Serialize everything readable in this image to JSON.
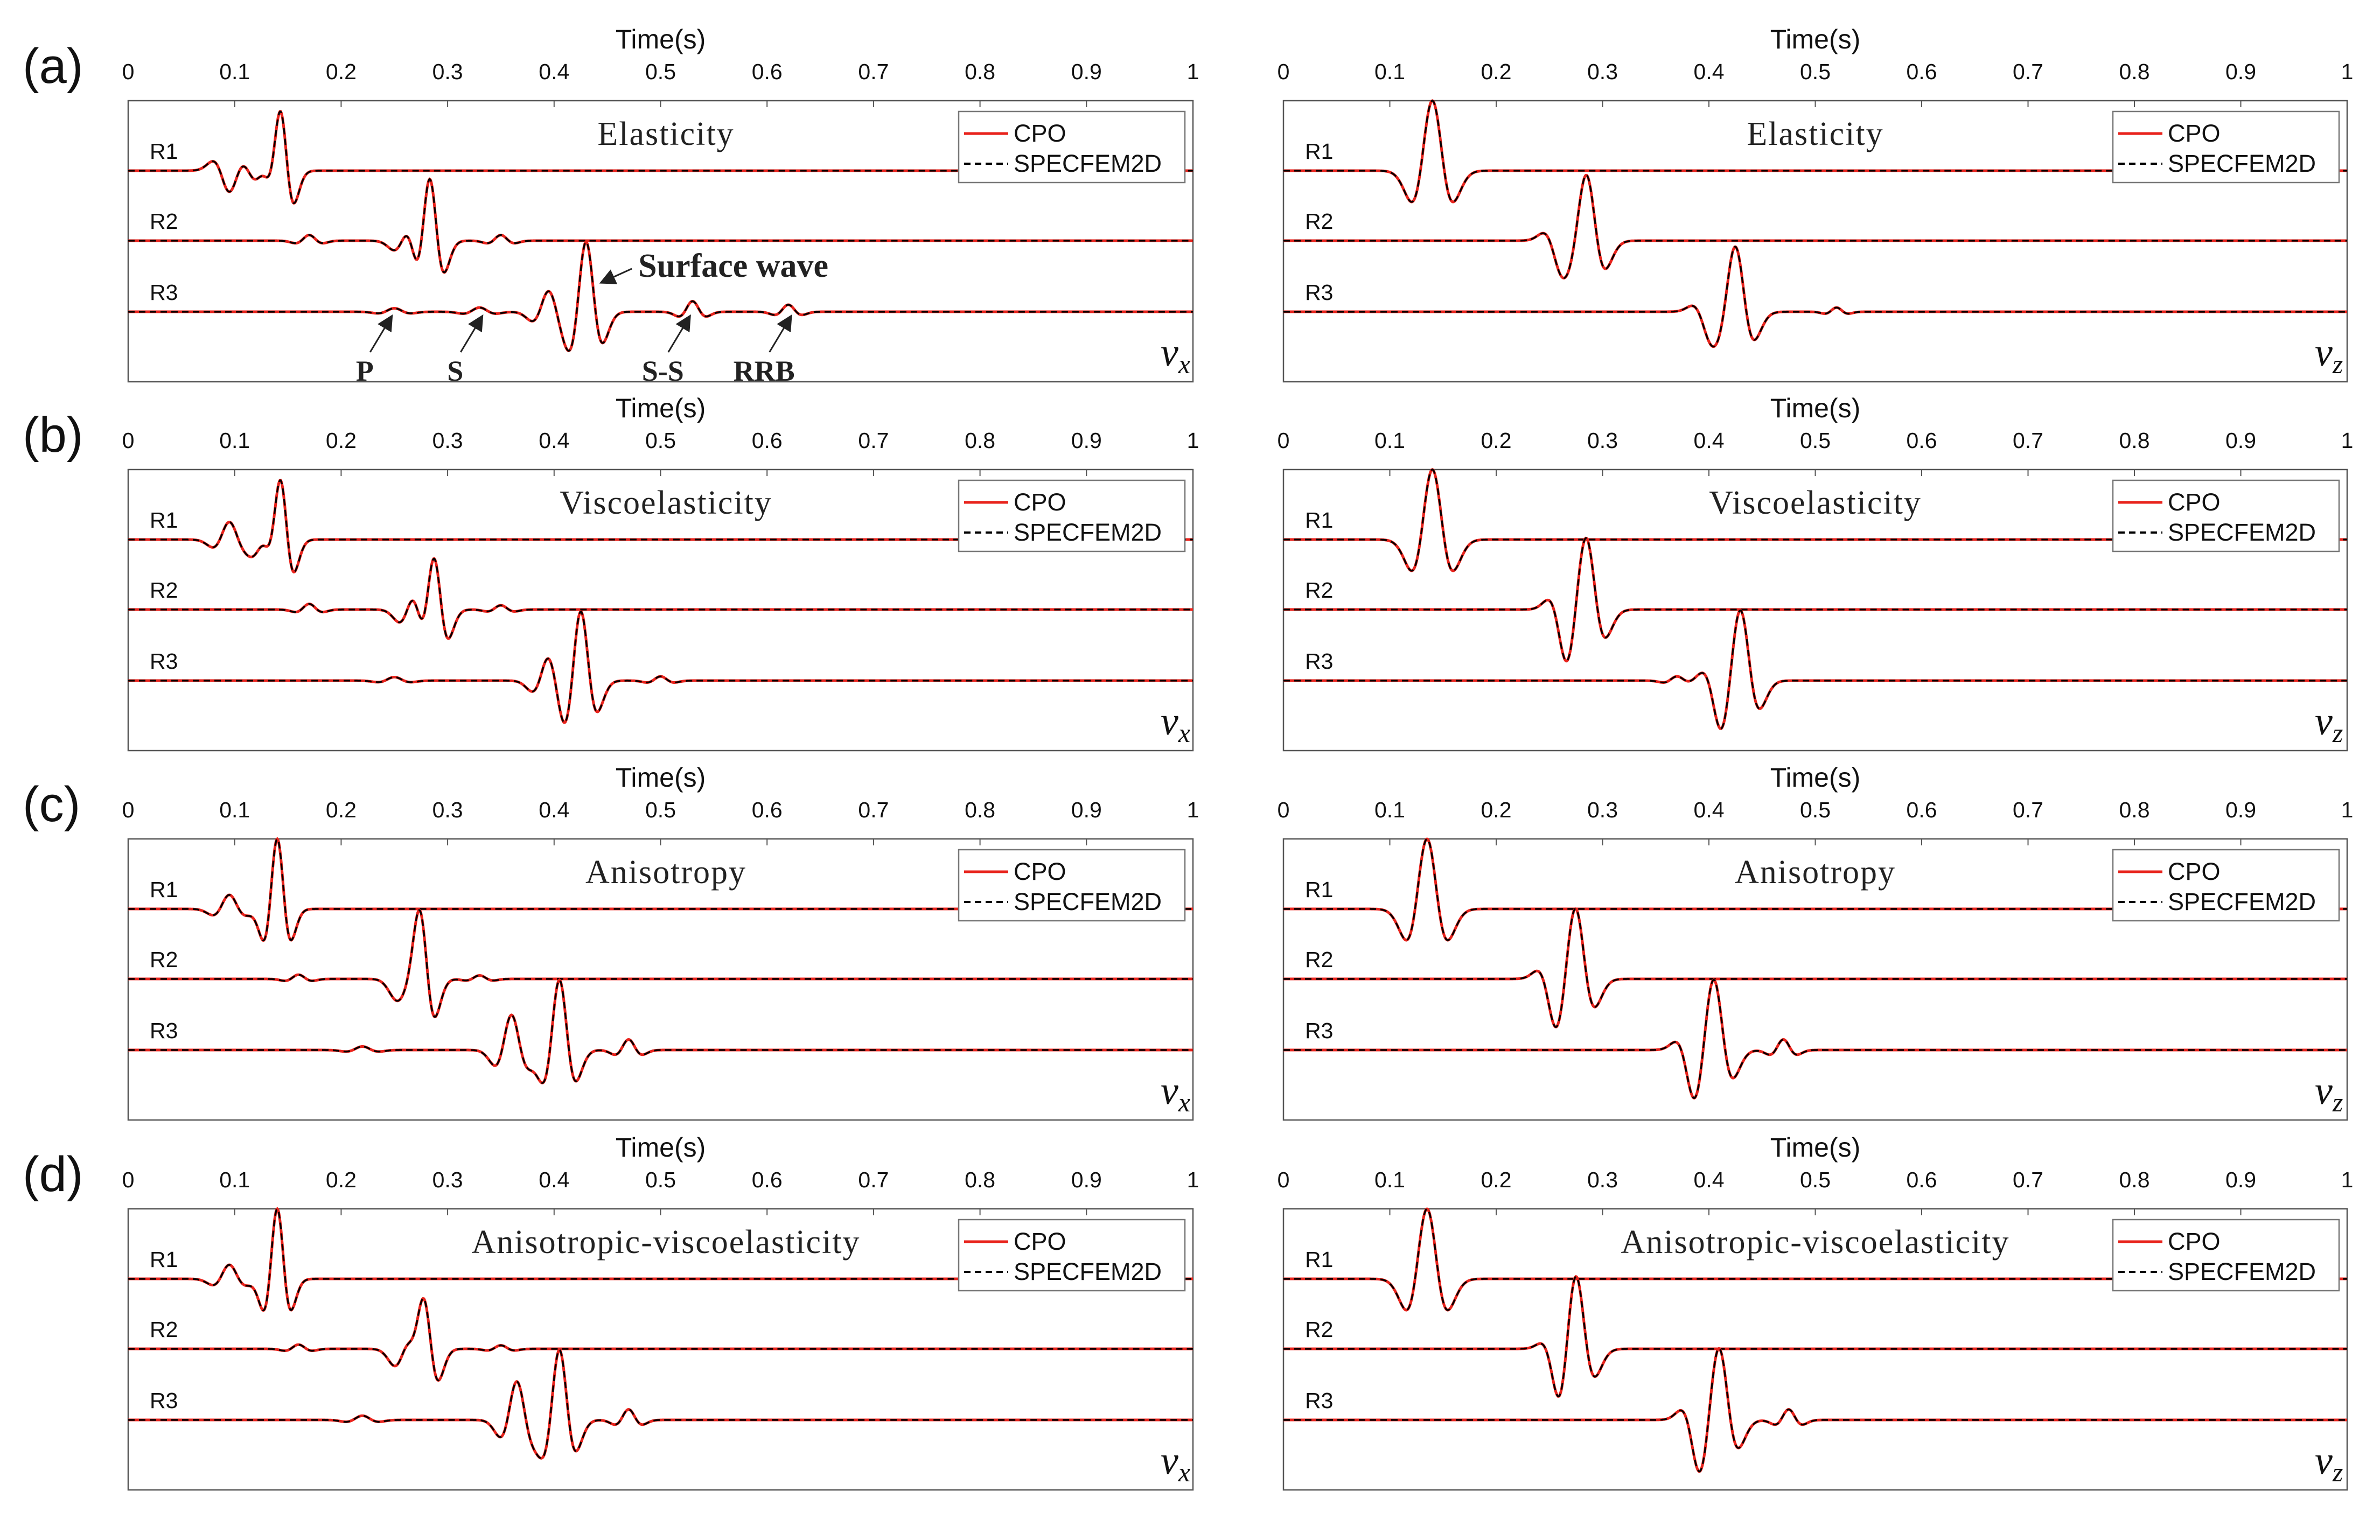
{
  "figure": {
    "panel_labels": [
      "(a)",
      "(b)",
      "(c)",
      "(d)"
    ],
    "titles": [
      "Elasticity",
      "Viscoelasticity",
      "Anisotropy",
      "Anisotropic-viscoelasticity"
    ],
    "component_labels": {
      "left": {
        "base": "v",
        "sub": "x"
      },
      "right": {
        "base": "v",
        "sub": "z"
      }
    },
    "receivers": [
      "R1",
      "R2",
      "R3"
    ],
    "legend": [
      {
        "label": "CPO",
        "color": "#e8231c",
        "style": "solid"
      },
      {
        "label": "SPECFEM2D",
        "color": "#000000",
        "style": "dashed"
      }
    ],
    "annotations": [
      {
        "label": "Surface wave",
        "t": 0.43,
        "receiver": "R3"
      },
      {
        "label": "P",
        "t": 0.25,
        "receiver": "R3"
      },
      {
        "label": "S",
        "t": 0.335,
        "receiver": "R3"
      },
      {
        "label": "S-S",
        "t": 0.53,
        "receiver": "R3"
      },
      {
        "label": "RRB",
        "t": 0.625,
        "receiver": "R3"
      }
    ]
  },
  "chart_data": [
    {
      "type": "line",
      "panel": "(a)",
      "component": "vx",
      "title": "Elasticity",
      "xlabel": "Time(s)",
      "xlim": [
        0,
        1
      ],
      "xticks": [
        "0",
        "0.1",
        "0.2",
        "0.3",
        "0.4",
        "0.5",
        "0.6",
        "0.7",
        "0.8",
        "0.9",
        "1"
      ],
      "series": [
        {
          "name": "R1",
          "arrivals": [
            {
              "t": 0.095,
              "amp": -0.3,
              "f": 25
            },
            {
              "t": 0.13,
              "amp": 0.35,
              "f": 28
            },
            {
              "t": 0.143,
              "amp": 1.0,
              "f": 30
            }
          ]
        },
        {
          "name": "R2",
          "arrivals": [
            {
              "t": 0.17,
              "amp": 0.08,
              "f": 30
            },
            {
              "t": 0.265,
              "amp": 0.3,
              "f": 25
            },
            {
              "t": 0.283,
              "amp": 1.0,
              "f": 28
            },
            {
              "t": 0.35,
              "amp": 0.08,
              "f": 30
            }
          ]
        },
        {
          "name": "R3",
          "arrivals": [
            {
              "t": 0.25,
              "amp": 0.05,
              "f": 25
            },
            {
              "t": 0.33,
              "amp": 0.06,
              "f": 25
            },
            {
              "t": 0.395,
              "amp": 0.3,
              "f": 25
            },
            {
              "t": 0.43,
              "amp": 1.0,
              "f": 25
            },
            {
              "t": 0.53,
              "amp": 0.15,
              "f": 30
            },
            {
              "t": 0.62,
              "amp": 0.1,
              "f": 30
            }
          ]
        }
      ]
    },
    {
      "type": "line",
      "panel": "(a)",
      "component": "vz",
      "title": "Elasticity",
      "xlabel": "Time(s)",
      "xlim": [
        0,
        1
      ],
      "xticks": [
        "0",
        "0.1",
        "0.2",
        "0.3",
        "0.4",
        "0.5",
        "0.6",
        "0.7",
        "0.8",
        "0.9",
        "1"
      ],
      "series": [
        {
          "name": "R1",
          "arrivals": [
            {
              "t": 0.14,
              "amp": 1.0,
              "f": 20
            }
          ]
        },
        {
          "name": "R2",
          "arrivals": [
            {
              "t": 0.26,
              "amp": -0.25,
              "f": 25
            },
            {
              "t": 0.285,
              "amp": 0.9,
              "f": 22
            }
          ]
        },
        {
          "name": "R3",
          "arrivals": [
            {
              "t": 0.4,
              "amp": -0.2,
              "f": 25
            },
            {
              "t": 0.425,
              "amp": 0.9,
              "f": 22
            },
            {
              "t": 0.52,
              "amp": 0.06,
              "f": 35
            }
          ]
        }
      ]
    },
    {
      "type": "line",
      "panel": "(b)",
      "component": "vx",
      "title": "Viscoelasticity",
      "xlabel": "Time(s)",
      "xlim": [
        0,
        1
      ],
      "xticks": [
        "0",
        "0.1",
        "0.2",
        "0.3",
        "0.4",
        "0.5",
        "0.6",
        "0.7",
        "0.8",
        "0.9",
        "1"
      ],
      "series": [
        {
          "name": "R1",
          "arrivals": [
            {
              "t": 0.095,
              "amp": 0.25,
              "f": 25
            },
            {
              "t": 0.13,
              "amp": 0.35,
              "f": 28
            },
            {
              "t": 0.143,
              "amp": 1.0,
              "f": 30
            }
          ]
        },
        {
          "name": "R2",
          "arrivals": [
            {
              "t": 0.17,
              "amp": 0.08,
              "f": 30
            },
            {
              "t": 0.27,
              "amp": 0.4,
              "f": 25
            },
            {
              "t": 0.287,
              "amp": 0.9,
              "f": 28
            },
            {
              "t": 0.35,
              "amp": 0.06,
              "f": 30
            }
          ]
        },
        {
          "name": "R3",
          "arrivals": [
            {
              "t": 0.25,
              "amp": 0.05,
              "f": 25
            },
            {
              "t": 0.395,
              "amp": 0.35,
              "f": 25
            },
            {
              "t": 0.425,
              "amp": 1.0,
              "f": 25
            },
            {
              "t": 0.5,
              "amp": 0.06,
              "f": 30
            }
          ]
        }
      ]
    },
    {
      "type": "line",
      "panel": "(b)",
      "component": "vz",
      "title": "Viscoelasticity",
      "xlabel": "Time(s)",
      "xlim": [
        0,
        1
      ],
      "xticks": [
        "0",
        "0.1",
        "0.2",
        "0.3",
        "0.4",
        "0.5",
        "0.6",
        "0.7",
        "0.8",
        "0.9",
        "1"
      ],
      "series": [
        {
          "name": "R1",
          "arrivals": [
            {
              "t": 0.14,
              "amp": 1.0,
              "f": 20
            }
          ]
        },
        {
          "name": "R2",
          "arrivals": [
            {
              "t": 0.265,
              "amp": -0.35,
              "f": 25
            },
            {
              "t": 0.285,
              "amp": 0.9,
              "f": 22
            }
          ]
        },
        {
          "name": "R3",
          "arrivals": [
            {
              "t": 0.37,
              "amp": 0.06,
              "f": 30
            },
            {
              "t": 0.41,
              "amp": -0.3,
              "f": 25
            },
            {
              "t": 0.43,
              "amp": 0.9,
              "f": 22
            }
          ]
        }
      ]
    },
    {
      "type": "line",
      "panel": "(c)",
      "component": "vx",
      "title": "Anisotropy",
      "xlabel": "Time(s)",
      "xlim": [
        0,
        1
      ],
      "xticks": [
        "0",
        "0.1",
        "0.2",
        "0.3",
        "0.4",
        "0.5",
        "0.6",
        "0.7",
        "0.8",
        "0.9",
        "1"
      ],
      "series": [
        {
          "name": "R1",
          "arrivals": [
            {
              "t": 0.095,
              "amp": 0.2,
              "f": 25
            },
            {
              "t": 0.14,
              "amp": 1.0,
              "f": 30
            }
          ]
        },
        {
          "name": "R2",
          "arrivals": [
            {
              "t": 0.16,
              "amp": 0.06,
              "f": 30
            },
            {
              "t": 0.265,
              "amp": 0.5,
              "f": 25
            },
            {
              "t": 0.275,
              "amp": 1.0,
              "f": 28
            },
            {
              "t": 0.33,
              "amp": 0.05,
              "f": 30
            }
          ]
        },
        {
          "name": "R3",
          "arrivals": [
            {
              "t": 0.22,
              "amp": 0.05,
              "f": 25
            },
            {
              "t": 0.36,
              "amp": 0.5,
              "f": 25
            },
            {
              "t": 0.405,
              "amp": 1.0,
              "f": 25
            },
            {
              "t": 0.47,
              "amp": 0.15,
              "f": 30
            }
          ]
        }
      ]
    },
    {
      "type": "line",
      "panel": "(c)",
      "component": "vz",
      "title": "Anisotropy",
      "xlabel": "Time(s)",
      "xlim": [
        0,
        1
      ],
      "xticks": [
        "0",
        "0.1",
        "0.2",
        "0.3",
        "0.4",
        "0.5",
        "0.6",
        "0.7",
        "0.8",
        "0.9",
        "1"
      ],
      "series": [
        {
          "name": "R1",
          "arrivals": [
            {
              "t": 0.135,
              "amp": 1.0,
              "f": 20
            }
          ]
        },
        {
          "name": "R2",
          "arrivals": [
            {
              "t": 0.255,
              "amp": -0.3,
              "f": 25
            },
            {
              "t": 0.275,
              "amp": 0.9,
              "f": 22
            }
          ]
        },
        {
          "name": "R3",
          "arrivals": [
            {
              "t": 0.385,
              "amp": -0.3,
              "f": 25
            },
            {
              "t": 0.405,
              "amp": 0.9,
              "f": 22
            },
            {
              "t": 0.47,
              "amp": 0.15,
              "f": 30
            }
          ]
        }
      ]
    },
    {
      "type": "line",
      "panel": "(d)",
      "component": "vx",
      "title": "Anisotropic-viscoelasticity",
      "xlabel": "Time(s)",
      "xlim": [
        0,
        1
      ],
      "xticks": [
        "0",
        "0.1",
        "0.2",
        "0.3",
        "0.4",
        "0.5",
        "0.6",
        "0.7",
        "0.8",
        "0.9",
        "1"
      ],
      "series": [
        {
          "name": "R1",
          "arrivals": [
            {
              "t": 0.095,
              "amp": 0.2,
              "f": 25
            },
            {
              "t": 0.14,
              "amp": 1.0,
              "f": 30
            }
          ]
        },
        {
          "name": "R2",
          "arrivals": [
            {
              "t": 0.16,
              "amp": 0.06,
              "f": 30
            },
            {
              "t": 0.265,
              "amp": 0.5,
              "f": 25
            },
            {
              "t": 0.278,
              "amp": 0.9,
              "f": 28
            },
            {
              "t": 0.35,
              "amp": 0.05,
              "f": 30
            }
          ]
        },
        {
          "name": "R3",
          "arrivals": [
            {
              "t": 0.22,
              "amp": 0.06,
              "f": 25
            },
            {
              "t": 0.365,
              "amp": 0.55,
              "f": 25
            },
            {
              "t": 0.405,
              "amp": 1.0,
              "f": 25
            },
            {
              "t": 0.47,
              "amp": 0.15,
              "f": 30
            }
          ]
        }
      ]
    },
    {
      "type": "line",
      "panel": "(d)",
      "component": "vz",
      "title": "Anisotropic-viscoelasticity",
      "xlabel": "Time(s)",
      "xlim": [
        0,
        1
      ],
      "xticks": [
        "0",
        "0.1",
        "0.2",
        "0.3",
        "0.4",
        "0.5",
        "0.6",
        "0.7",
        "0.8",
        "0.9",
        "1"
      ],
      "series": [
        {
          "name": "R1",
          "arrivals": [
            {
              "t": 0.135,
              "amp": 1.0,
              "f": 20
            }
          ]
        },
        {
          "name": "R2",
          "arrivals": [
            {
              "t": 0.26,
              "amp": -0.3,
              "f": 25
            },
            {
              "t": 0.275,
              "amp": 0.9,
              "f": 22
            }
          ]
        },
        {
          "name": "R3",
          "arrivals": [
            {
              "t": 0.39,
              "amp": -0.35,
              "f": 25
            },
            {
              "t": 0.41,
              "amp": 0.9,
              "f": 22
            },
            {
              "t": 0.475,
              "amp": 0.15,
              "f": 30
            }
          ]
        }
      ]
    }
  ]
}
